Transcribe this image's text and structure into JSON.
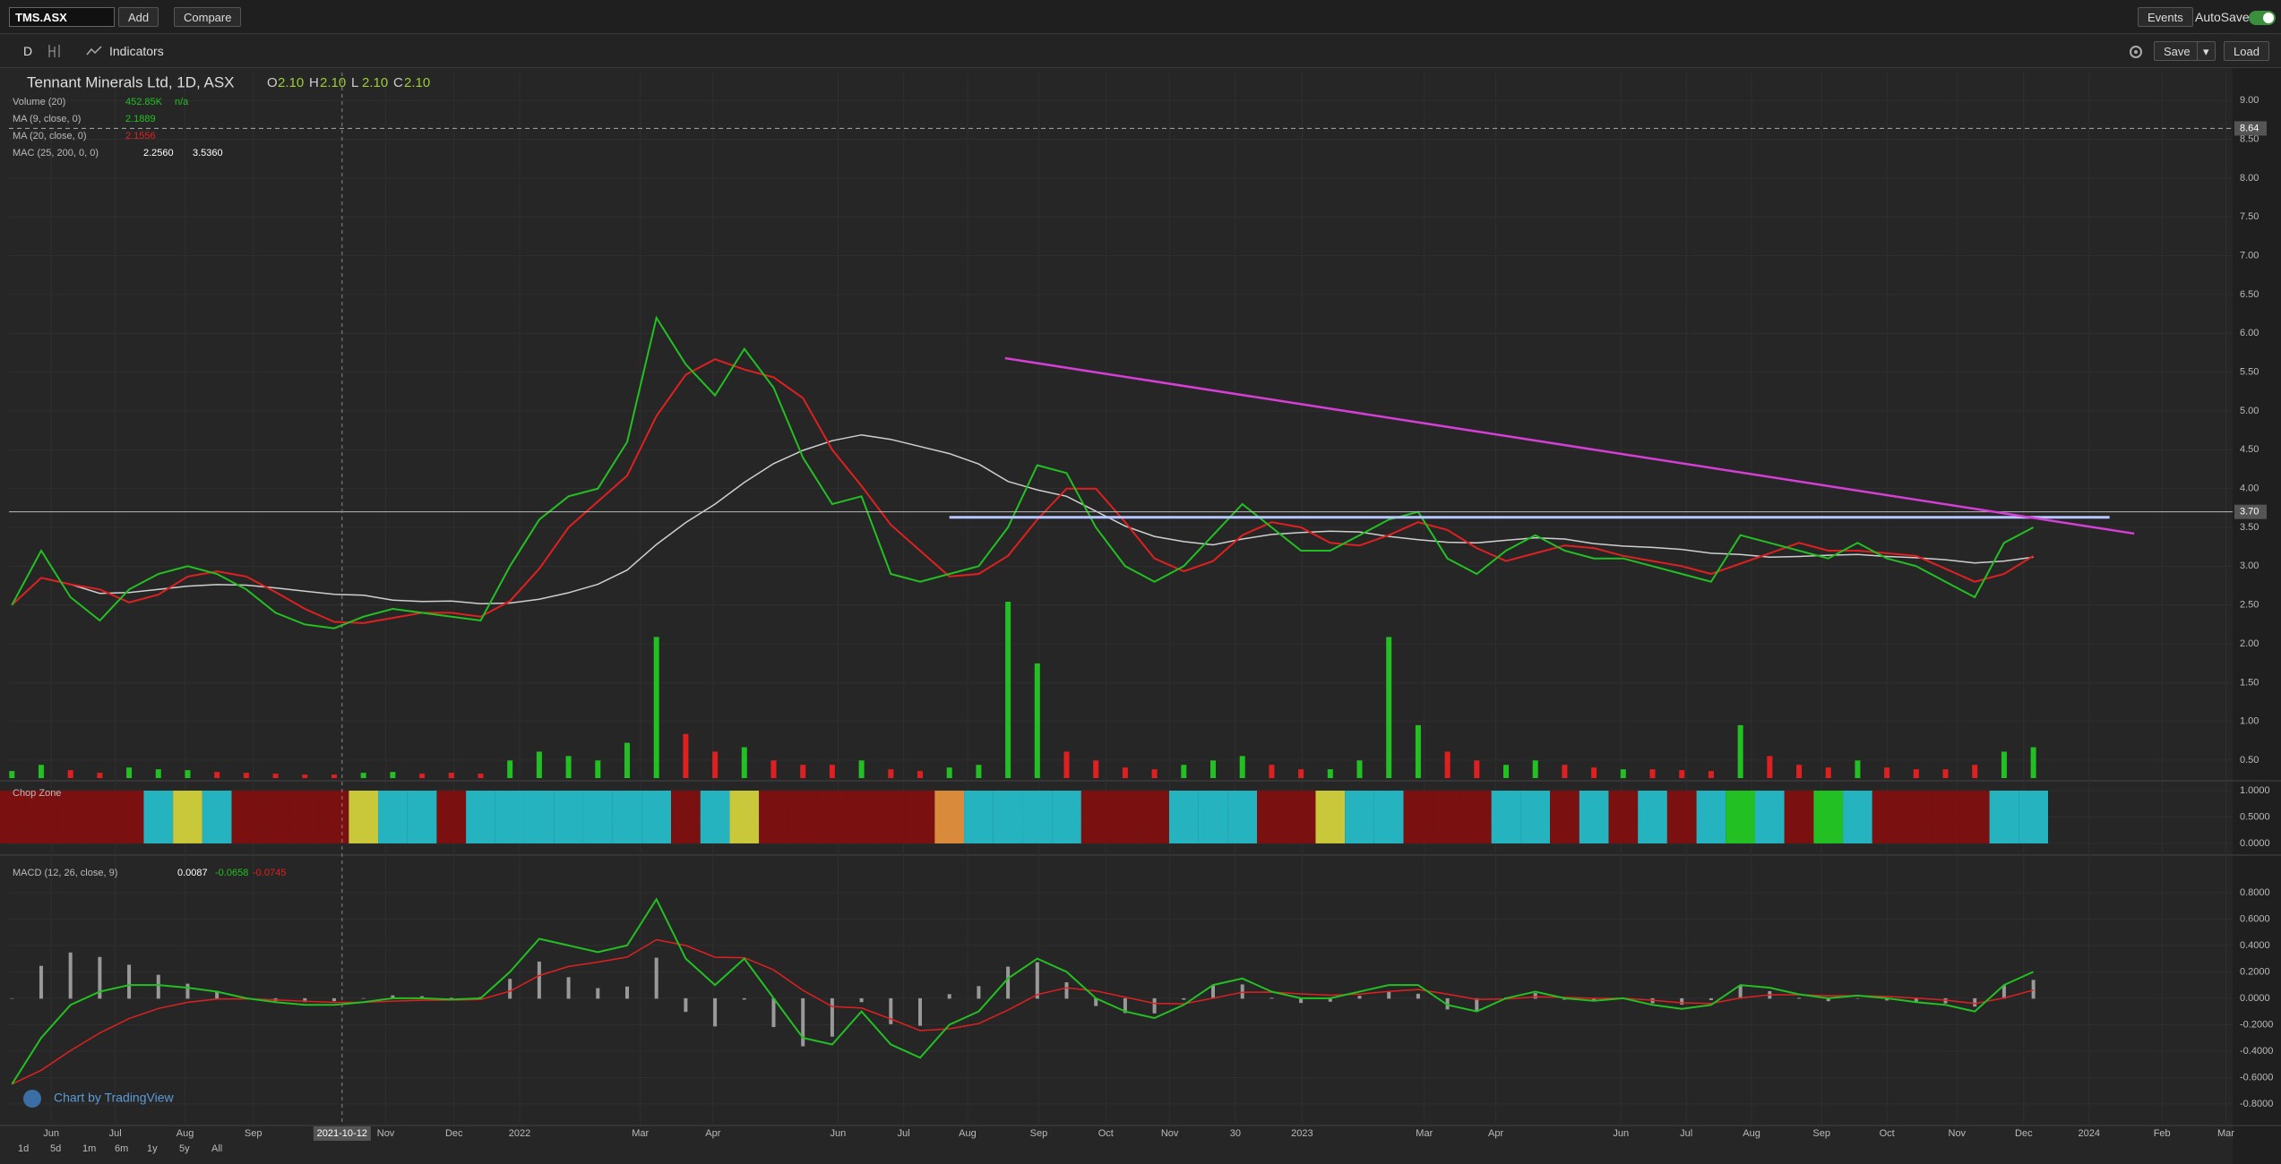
{
  "toolbar": {
    "symbol": "TMS.ASX",
    "add": "Add",
    "compare": "Compare",
    "events": "Events",
    "autosave": "AutoSave"
  },
  "chart_toolbar": {
    "interval": "D",
    "indicators": "Indicators",
    "save": "Save",
    "load": "Load"
  },
  "legend": {
    "title": "Tennant Minerals Ltd, 1D, ASX",
    "ohlc": [
      {
        "key": "O",
        "value": "2.10"
      },
      {
        "key": "H",
        "value": "2.10"
      },
      {
        "key": "L",
        "value": "2.10"
      },
      {
        "key": "C",
        "value": "2.10"
      }
    ],
    "rows": [
      {
        "name": "Volume (20)",
        "values": [
          "452.85K",
          "n/a"
        ],
        "color": "#22c022"
      },
      {
        "name": "MA (9, close, 0)",
        "values": [
          "2.1889"
        ],
        "color": "#22c022"
      },
      {
        "name": "MA (20, close, 0)",
        "values": [
          "2.1556"
        ],
        "color": "#e02020"
      },
      {
        "name": "MAC (25, 200, 0, 0)",
        "values": [
          "2.2560",
          "3.5360"
        ],
        "color": "#ffffff"
      }
    ]
  },
  "chart_data": [
    {
      "type": "line",
      "xlim": [
        -0.1,
        75.8
      ],
      "ylim": [
        0.27,
        9.36
      ],
      "grid": true,
      "xticks": [
        {
          "value": 1.34,
          "label": "Jun"
        },
        {
          "value": 3.53,
          "label": "Jul"
        },
        {
          "value": 5.91,
          "label": "Aug"
        },
        {
          "value": 8.24,
          "label": "Sep"
        },
        {
          "value": 12.76,
          "label": "Nov"
        },
        {
          "value": 15.09,
          "label": "Dec"
        },
        {
          "value": 17.33,
          "label": "2022"
        },
        {
          "value": 21.45,
          "label": "Mar"
        },
        {
          "value": 23.93,
          "label": "Apr"
        },
        {
          "value": 28.2,
          "label": "Jun"
        },
        {
          "value": 30.44,
          "label": "Jul"
        },
        {
          "value": 32.62,
          "label": "Aug"
        },
        {
          "value": 35.05,
          "label": "Sep"
        },
        {
          "value": 37.34,
          "label": "Oct"
        },
        {
          "value": 39.52,
          "label": "Nov"
        },
        {
          "value": 41.76,
          "label": "30"
        },
        {
          "value": 44.04,
          "label": "2023"
        },
        {
          "value": 48.21,
          "label": "Mar"
        },
        {
          "value": 50.65,
          "label": "Apr"
        },
        {
          "value": 54.92,
          "label": "Jun"
        },
        {
          "value": 57.15,
          "label": "Jul"
        },
        {
          "value": 59.38,
          "label": "Aug"
        },
        {
          "value": 61.77,
          "label": "Sep"
        },
        {
          "value": 64.0,
          "label": "Oct"
        },
        {
          "value": 66.39,
          "label": "Nov"
        },
        {
          "value": 68.67,
          "label": "Dec"
        },
        {
          "value": 70.9,
          "label": "2024"
        },
        {
          "value": 73.39,
          "label": "Feb"
        },
        {
          "value": 75.57,
          "label": "Mar"
        }
      ],
      "crosshair": {
        "value": 11.27,
        "label": "2021-10-12"
      },
      "yticks": [
        {
          "value": 9,
          "label": "9.00"
        },
        {
          "value": 8.5,
          "label": "8.50"
        },
        {
          "value": 8,
          "label": "8.00"
        },
        {
          "value": 7.5,
          "label": "7.50"
        },
        {
          "value": 7,
          "label": "7.00"
        },
        {
          "value": 6.5,
          "label": "6.50"
        },
        {
          "value": 6,
          "label": "6.00"
        },
        {
          "value": 5.5,
          "label": "5.50"
        },
        {
          "value": 5,
          "label": "5.00"
        },
        {
          "value": 4.5,
          "label": "4.50"
        },
        {
          "value": 4,
          "label": "4.00"
        },
        {
          "value": 3.5,
          "label": "3.50"
        },
        {
          "value": 3,
          "label": "3.00"
        },
        {
          "value": 2.5,
          "label": "2.50"
        },
        {
          "value": 2,
          "label": "2.00"
        },
        {
          "value": 1.5,
          "label": "1.50"
        },
        {
          "value": 1,
          "label": "1.00"
        },
        {
          "value": 0.5,
          "label": "0.50"
        }
      ],
      "series": [
        {
          "name": "MA (9, close, 0)",
          "color": "#22c022",
          "values": [
            2.5,
            3.2,
            2.6,
            2.3,
            2.7,
            2.9,
            3.0,
            2.9,
            2.7,
            2.4,
            2.25,
            2.2,
            2.35,
            2.45,
            2.4,
            2.35,
            2.3,
            3.0,
            3.6,
            3.9,
            4.0,
            4.6,
            6.2,
            5.6,
            5.2,
            5.8,
            5.3,
            4.4,
            3.8,
            3.9,
            2.9,
            2.8,
            2.9,
            3.0,
            3.5,
            4.3,
            4.2,
            3.5,
            3.0,
            2.8,
            3.0,
            3.4,
            3.8,
            3.5,
            3.2,
            3.2,
            3.4,
            3.6,
            3.7,
            3.1,
            2.9,
            3.2,
            3.4,
            3.2,
            3.1,
            3.1,
            3.0,
            2.9,
            2.8,
            3.4,
            3.3,
            3.2,
            3.1,
            3.3,
            3.1,
            3.0,
            2.8,
            2.6,
            3.3,
            3.5
          ]
        }
      ],
      "volume": {
        "vlim": [
          0,
          8000
        ],
        "up_color": "#22c022",
        "down_color": "#e02020",
        "values": [
          80,
          150,
          90,
          60,
          120,
          100,
          90,
          70,
          60,
          50,
          40,
          40,
          60,
          70,
          50,
          60,
          50,
          200,
          300,
          250,
          200,
          400,
          1600,
          500,
          300,
          350,
          200,
          150,
          150,
          200,
          100,
          80,
          120,
          150,
          2000,
          1300,
          300,
          200,
          120,
          100,
          150,
          200,
          250,
          150,
          100,
          100,
          200,
          1600,
          600,
          300,
          200,
          150,
          200,
          150,
          120,
          100,
          100,
          90,
          80,
          600,
          250,
          150,
          120,
          200,
          120,
          100,
          100,
          150,
          300,
          350
        ]
      },
      "price_lines": [
        {
          "value": 8.64,
          "label": "8.64",
          "color": "#aaaaaa",
          "dashed": true
        },
        {
          "value": 3.7,
          "label": "3.70",
          "color": "#bbbbbb",
          "dashed": false
        }
      ],
      "segments": [
        {
          "value": 3.63,
          "from": 32,
          "to": 71.6,
          "color": "#b8c8ff"
        }
      ],
      "trendlines": [
        {
          "color": "#d63fd6",
          "points": [
            [
              33.9,
              5.68
            ],
            [
              72.44,
              3.42
            ]
          ]
        }
      ]
    },
    {
      "type": "bar",
      "title": "Chop Zone",
      "ylim": [
        -0.136,
        1.136
      ],
      "yticks": [
        {
          "value": 1,
          "label": "1.0000"
        },
        {
          "value": 0.5,
          "label": "0.5000"
        },
        {
          "value": 0,
          "label": "0.0000"
        }
      ],
      "colors": [
        "#7a1010",
        "#7a1010",
        "#7a1010",
        "#7a1010",
        "#7a1010",
        "#26b3c0",
        "#c8c83a",
        "#26b3c0",
        "#7a1010",
        "#7a1010",
        "#7a1010",
        "#7a1010",
        "#c8c83a",
        "#26b3c0",
        "#26b3c0",
        "#7a1010",
        "#26b3c0",
        "#26b3c0",
        "#26b3c0",
        "#26b3c0",
        "#26b3c0",
        "#26b3c0",
        "#26b3c0",
        "#7a1010",
        "#26b3c0",
        "#c8c83a",
        "#7a1010",
        "#7a1010",
        "#7a1010",
        "#7a1010",
        "#7a1010",
        "#7a1010",
        "#d98a3a",
        "#26b3c0",
        "#26b3c0",
        "#26b3c0",
        "#26b3c0",
        "#7a1010",
        "#7a1010",
        "#7a1010",
        "#26b3c0",
        "#26b3c0",
        "#26b3c0",
        "#7a1010",
        "#7a1010",
        "#c8c83a",
        "#26b3c0",
        "#26b3c0",
        "#7a1010",
        "#7a1010",
        "#7a1010",
        "#26b3c0",
        "#26b3c0",
        "#7a1010",
        "#26b3c0",
        "#7a1010",
        "#26b3c0",
        "#7a1010",
        "#26b3c0",
        "#22c022",
        "#26b3c0",
        "#7a1010",
        "#22c022",
        "#26b3c0",
        "#7a1010",
        "#7a1010",
        "#7a1010",
        "#7a1010",
        "#26b3c0",
        "#26b3c0"
      ]
    },
    {
      "type": "line",
      "title": "MACD (12, 26, close, 9)",
      "legend_values": [
        "0.0087",
        "-0.0658",
        "-0.0745"
      ],
      "legend_colors": [
        "#ffffff",
        "#22c022",
        "#e02020"
      ],
      "ylim": [
        -0.95,
        1.05
      ],
      "yticks": [
        {
          "value": 0.8,
          "label": "0.8000"
        },
        {
          "value": 0.6,
          "label": "0.6000"
        },
        {
          "value": 0.4,
          "label": "0.4000"
        },
        {
          "value": 0.2,
          "label": "0.2000"
        },
        {
          "value": 0,
          "label": "0.0000"
        },
        {
          "value": -0.2,
          "label": "-0.2000"
        },
        {
          "value": -0.4,
          "label": "-0.4000"
        },
        {
          "value": -0.6,
          "label": "-0.6000"
        },
        {
          "value": -0.8,
          "label": "-0.8000"
        }
      ],
      "series": [
        {
          "name": "MACD",
          "color": "#22c022",
          "values": [
            -0.65,
            -0.3,
            -0.05,
            0.05,
            0.1,
            0.1,
            0.08,
            0.05,
            0.0,
            -0.03,
            -0.05,
            -0.05,
            -0.03,
            0.0,
            0.0,
            -0.01,
            0.0,
            0.2,
            0.45,
            0.4,
            0.35,
            0.4,
            0.75,
            0.3,
            0.1,
            0.3,
            0.0,
            -0.3,
            -0.35,
            -0.1,
            -0.35,
            -0.45,
            -0.2,
            -0.1,
            0.15,
            0.3,
            0.2,
            0.0,
            -0.1,
            -0.15,
            -0.05,
            0.1,
            0.15,
            0.05,
            0.0,
            0.0,
            0.05,
            0.1,
            0.1,
            -0.05,
            -0.1,
            0.0,
            0.05,
            0.0,
            -0.02,
            0.0,
            -0.05,
            -0.08,
            -0.05,
            0.1,
            0.08,
            0.03,
            0.0,
            0.02,
            0.0,
            -0.03,
            -0.05,
            -0.1,
            0.1,
            0.2
          ]
        }
      ],
      "signal_color": "#e02020",
      "hist_color": "#999999"
    }
  ],
  "watermark": "Chart by TradingView",
  "ranges": [
    "1d",
    "5d",
    "1m",
    "6m",
    "1y",
    "5y",
    "All"
  ]
}
